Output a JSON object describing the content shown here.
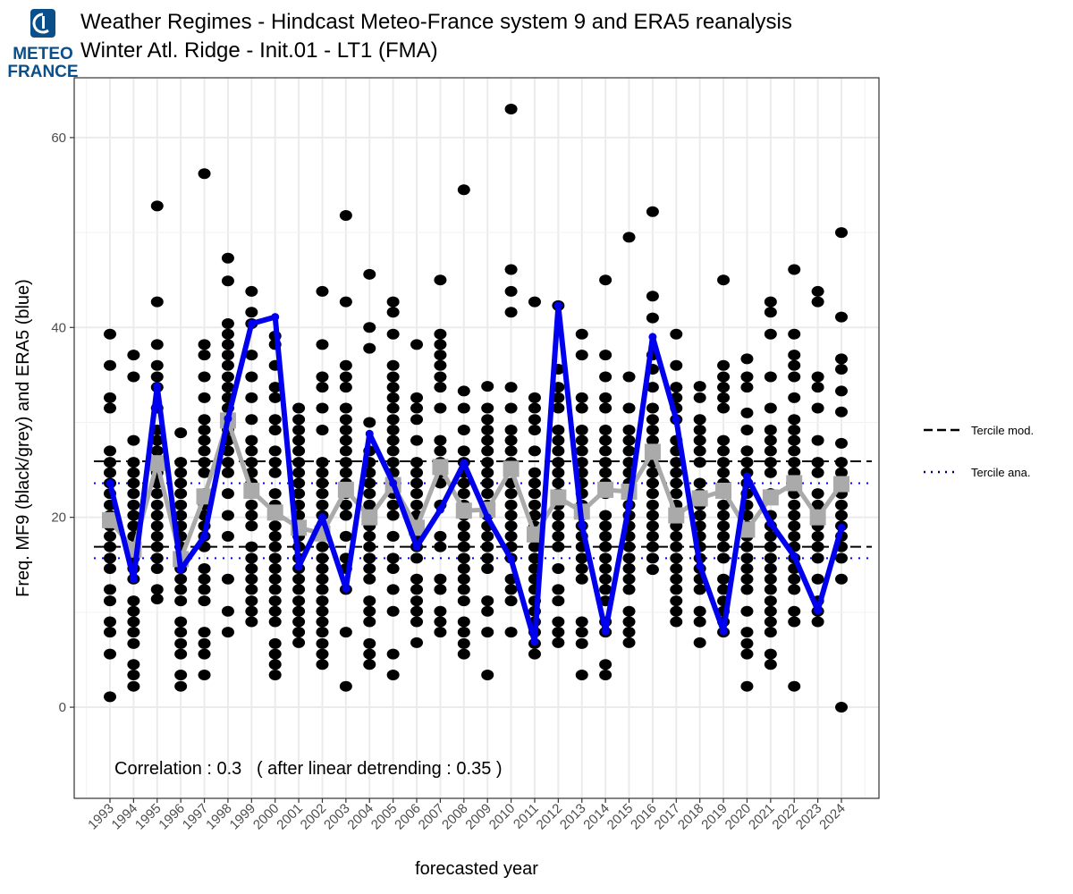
{
  "logo": {
    "line1": "METEO",
    "line2": "FRANCE",
    "color": "#0b4f8a"
  },
  "chart_data": {
    "type": "scatter+line",
    "title": "Weather Regimes - Hindcast Meteo-France system 9 and ERA5 reanalysis",
    "subtitle": "Winter Atl. Ridge - Init.01 - LT1 (FMA)",
    "xlabel": "forecasted year",
    "ylabel": "Freq. MF9 (black/grey) and ERA5 (blue)",
    "ylim": [
      -9.6,
      66.3
    ],
    "yticks": [
      0,
      20,
      40,
      60
    ],
    "grid": true,
    "years": [
      1993,
      1994,
      1995,
      1996,
      1997,
      1998,
      1999,
      2000,
      2001,
      2002,
      2003,
      2004,
      2005,
      2006,
      2007,
      2008,
      2009,
      2010,
      2011,
      2012,
      2013,
      2014,
      2015,
      2016,
      2017,
      2018,
      2019,
      2020,
      2021,
      2022,
      2023,
      2024
    ],
    "era5": [
      23.6,
      13.5,
      33.8,
      14.5,
      18.0,
      30.4,
      40.4,
      41.1,
      14.8,
      20.0,
      12.5,
      28.8,
      23.6,
      16.9,
      20.8,
      25.7,
      20.0,
      15.6,
      6.9,
      42.3,
      19.2,
      8.0,
      21.3,
      39.0,
      30.3,
      14.9,
      8.0,
      24.3,
      19.4,
      15.9,
      10.2,
      18.9
    ],
    "model_mean": [
      19.7,
      16.6,
      25.7,
      15.6,
      22.2,
      30.2,
      22.8,
      20.5,
      18.9,
      18.3,
      22.9,
      20.0,
      23.4,
      18.9,
      25.3,
      20.7,
      20.8,
      25.1,
      18.2,
      22.1,
      20.6,
      22.9,
      22.7,
      26.9,
      20.2,
      22.0,
      22.8,
      18.7,
      22.1,
      23.6,
      20.0,
      23.5
    ],
    "members": [
      [
        1.1,
        5.6,
        7.9,
        9.0,
        11.2,
        12.4,
        14.6,
        15.7,
        16.9,
        18.0,
        19.1,
        20.2,
        21.3,
        22.5,
        23.6,
        24.7,
        25.8,
        27.0,
        31.5,
        32.6,
        36.0,
        39.3
      ],
      [
        2.2,
        3.4,
        4.5,
        6.7,
        7.9,
        9.0,
        10.1,
        11.2,
        13.5,
        14.6,
        15.7,
        16.9,
        18.0,
        19.1,
        20.2,
        21.3,
        22.5,
        23.6,
        24.7,
        25.8,
        28.1,
        34.8,
        37.1
      ],
      [
        11.4,
        12.4,
        14.6,
        15.7,
        16.9,
        18.0,
        19.1,
        20.2,
        21.3,
        22.5,
        23.6,
        24.7,
        25.8,
        27.0,
        28.1,
        29.2,
        31.5,
        33.7,
        34.8,
        36.0,
        38.2,
        42.7,
        52.8
      ],
      [
        2.2,
        3.4,
        5.6,
        6.7,
        7.9,
        9.0,
        11.2,
        12.4,
        13.5,
        14.6,
        15.7,
        16.9,
        18.0,
        19.1,
        20.2,
        21.3,
        22.5,
        23.6,
        24.7,
        25.8,
        28.9
      ],
      [
        3.4,
        5.6,
        6.7,
        7.9,
        11.2,
        12.4,
        13.5,
        14.6,
        16.9,
        18.0,
        19.1,
        20.2,
        21.3,
        22.5,
        24.7,
        25.8,
        27.0,
        28.1,
        29.2,
        30.3,
        32.6,
        34.8,
        37.1,
        38.2,
        56.2
      ],
      [
        7.9,
        10.1,
        13.5,
        18.0,
        20.2,
        22.5,
        24.7,
        25.8,
        27.0,
        28.1,
        29.2,
        30.3,
        31.5,
        32.6,
        33.7,
        34.8,
        36.0,
        37.1,
        38.2,
        39.3,
        40.4,
        44.9,
        47.3
      ],
      [
        9.0,
        10.1,
        11.2,
        12.4,
        13.5,
        14.6,
        15.7,
        16.9,
        19.1,
        20.2,
        21.3,
        22.5,
        23.6,
        24.7,
        25.8,
        27.0,
        28.1,
        30.3,
        32.6,
        34.8,
        37.1,
        40.4,
        41.6,
        43.8
      ],
      [
        3.4,
        4.5,
        5.6,
        6.7,
        9.0,
        10.1,
        11.2,
        12.4,
        13.5,
        14.6,
        15.7,
        16.9,
        18.0,
        19.1,
        20.2,
        21.3,
        22.5,
        24.7,
        25.8,
        27.0,
        29.2,
        30.3,
        32.6,
        33.7,
        36.0,
        38.2,
        39.1
      ],
      [
        6.8,
        7.9,
        9.0,
        10.1,
        11.2,
        12.4,
        13.5,
        14.6,
        15.7,
        16.9,
        18.0,
        19.1,
        20.2,
        21.3,
        22.5,
        23.6,
        24.7,
        25.8,
        27.0,
        28.1,
        29.2,
        30.3,
        31.5
      ],
      [
        4.5,
        5.6,
        6.7,
        7.9,
        9.0,
        10.1,
        11.2,
        12.4,
        13.5,
        14.6,
        15.7,
        16.9,
        18.0,
        19.1,
        20.2,
        21.3,
        22.5,
        23.6,
        24.7,
        25.8,
        29.2,
        31.5,
        33.7,
        34.8,
        38.2,
        43.8
      ],
      [
        2.2,
        7.9,
        12.4,
        14.6,
        15.7,
        18.0,
        20.2,
        21.3,
        22.5,
        23.6,
        24.7,
        25.8,
        27.0,
        28.1,
        29.2,
        30.3,
        31.5,
        33.7,
        34.8,
        36.0,
        42.7,
        51.8
      ],
      [
        4.5,
        5.6,
        6.7,
        9.0,
        10.1,
        11.2,
        13.5,
        14.6,
        15.7,
        16.9,
        18.0,
        19.1,
        20.2,
        21.3,
        22.5,
        23.6,
        24.7,
        25.8,
        27.0,
        30.0,
        37.8,
        40.0,
        45.6
      ],
      [
        3.4,
        5.6,
        10.1,
        12.4,
        14.6,
        15.7,
        18.0,
        20.2,
        21.3,
        22.5,
        23.6,
        24.7,
        25.8,
        27.0,
        28.1,
        29.2,
        30.3,
        31.5,
        32.6,
        33.7,
        34.8,
        36.0,
        39.3,
        41.6,
        42.7
      ],
      [
        6.8,
        9.0,
        10.1,
        11.2,
        12.4,
        13.5,
        15.7,
        16.9,
        18.0,
        19.1,
        20.2,
        21.3,
        22.5,
        23.6,
        24.7,
        25.8,
        28.1,
        30.3,
        31.5,
        32.6,
        38.2
      ],
      [
        7.9,
        9.0,
        10.1,
        12.4,
        13.5,
        16.9,
        18.0,
        21.3,
        23.6,
        24.7,
        25.8,
        27.0,
        28.1,
        31.5,
        33.7,
        34.8,
        36.0,
        37.1,
        38.2,
        39.3,
        45.0
      ],
      [
        5.6,
        6.7,
        7.9,
        9.0,
        11.2,
        12.4,
        13.5,
        14.6,
        15.7,
        16.9,
        18.0,
        19.1,
        20.2,
        21.3,
        22.5,
        23.6,
        24.7,
        25.8,
        27.0,
        29.2,
        31.5,
        33.3,
        54.5
      ],
      [
        3.4,
        7.9,
        10.1,
        11.2,
        14.6,
        15.7,
        16.9,
        18.0,
        19.1,
        20.2,
        21.3,
        22.5,
        23.6,
        24.7,
        25.8,
        27.0,
        28.1,
        29.2,
        30.3,
        31.5,
        33.8
      ],
      [
        7.9,
        11.2,
        12.4,
        13.5,
        15.7,
        16.9,
        18.0,
        19.1,
        20.2,
        21.3,
        22.5,
        23.6,
        25.8,
        27.0,
        28.1,
        29.2,
        31.5,
        33.7,
        41.6,
        43.8,
        46.1,
        63.0
      ],
      [
        5.6,
        6.7,
        7.9,
        9.0,
        10.1,
        11.2,
        12.4,
        13.5,
        14.6,
        15.7,
        16.9,
        18.0,
        19.1,
        20.2,
        21.3,
        22.5,
        23.6,
        24.7,
        27.0,
        29.2,
        30.3,
        31.5,
        32.6,
        42.7
      ],
      [
        6.8,
        7.9,
        9.0,
        11.2,
        12.4,
        14.6,
        16.9,
        18.0,
        19.1,
        20.2,
        21.3,
        22.5,
        23.6,
        24.7,
        25.8,
        27.0,
        28.1,
        29.2,
        31.5,
        32.6,
        33.7,
        35.6,
        42.3
      ],
      [
        3.4,
        6.7,
        7.9,
        9.0,
        13.5,
        14.6,
        15.7,
        16.9,
        18.0,
        19.1,
        20.2,
        21.3,
        22.5,
        23.6,
        24.7,
        25.8,
        27.0,
        28.1,
        29.2,
        31.5,
        32.6,
        37.1,
        39.3
      ],
      [
        3.4,
        4.5,
        7.9,
        9.0,
        11.2,
        12.4,
        13.5,
        14.6,
        15.7,
        16.9,
        18.0,
        19.1,
        20.2,
        22.5,
        23.6,
        24.7,
        25.8,
        27.0,
        28.1,
        29.2,
        31.5,
        32.6,
        34.8,
        37.1,
        45.0
      ],
      [
        6.8,
        7.9,
        9.0,
        10.1,
        12.4,
        13.5,
        14.6,
        15.7,
        16.9,
        18.0,
        19.1,
        20.2,
        21.3,
        22.5,
        23.6,
        24.7,
        25.8,
        27.0,
        28.1,
        29.2,
        31.5,
        34.8,
        49.5
      ],
      [
        14.5,
        15.7,
        16.9,
        18.0,
        19.1,
        20.2,
        21.3,
        22.5,
        23.6,
        24.7,
        25.8,
        27.0,
        28.1,
        29.2,
        30.3,
        31.5,
        33.7,
        35.6,
        37.1,
        41.0,
        43.3,
        52.2
      ],
      [
        9.0,
        10.1,
        11.2,
        12.4,
        13.5,
        14.6,
        15.7,
        16.9,
        18.0,
        19.1,
        20.2,
        21.3,
        22.5,
        23.6,
        24.7,
        25.8,
        27.0,
        28.1,
        30.3,
        31.5,
        32.6,
        33.7,
        36.0,
        39.3
      ],
      [
        6.8,
        9.0,
        10.1,
        12.4,
        13.5,
        14.6,
        15.7,
        16.9,
        18.0,
        19.1,
        20.2,
        21.3,
        22.5,
        23.6,
        25.8,
        27.0,
        28.1,
        29.2,
        30.3,
        32.6,
        33.8
      ],
      [
        7.9,
        9.0,
        10.1,
        11.2,
        12.4,
        13.5,
        15.7,
        16.9,
        18.0,
        19.1,
        20.2,
        21.3,
        22.5,
        23.6,
        24.7,
        25.8,
        27.0,
        28.1,
        31.5,
        32.6,
        33.7,
        34.8,
        36.0,
        45.0
      ],
      [
        2.2,
        5.6,
        6.7,
        7.9,
        10.1,
        12.4,
        13.5,
        14.6,
        15.7,
        16.9,
        18.0,
        19.1,
        20.2,
        21.3,
        22.5,
        23.6,
        24.7,
        25.8,
        27.0,
        29.2,
        31.0,
        33.7,
        34.8,
        36.7
      ],
      [
        4.5,
        5.6,
        7.9,
        9.0,
        10.1,
        11.2,
        12.4,
        13.5,
        14.6,
        15.7,
        16.9,
        18.0,
        19.1,
        20.2,
        22.5,
        24.7,
        25.8,
        27.0,
        28.1,
        29.2,
        31.5,
        34.8,
        39.3,
        41.6,
        42.7
      ],
      [
        2.2,
        9.0,
        10.1,
        12.4,
        13.5,
        14.6,
        15.7,
        16.9,
        18.0,
        19.1,
        20.2,
        21.3,
        22.5,
        23.6,
        24.7,
        25.8,
        27.0,
        28.1,
        29.2,
        30.3,
        32.6,
        34.8,
        36.0,
        37.1,
        39.3,
        46.1
      ],
      [
        9.0,
        10.1,
        11.2,
        13.5,
        15.7,
        16.9,
        18.0,
        19.1,
        20.2,
        21.3,
        22.5,
        24.7,
        25.8,
        28.1,
        31.5,
        33.7,
        34.8,
        42.7,
        43.8
      ],
      [
        0.0,
        13.5,
        15.7,
        16.9,
        18.0,
        19.1,
        20.2,
        21.3,
        22.5,
        23.6,
        24.7,
        25.8,
        27.8,
        31.1,
        33.3,
        35.6,
        36.7,
        41.1,
        50.0
      ]
    ],
    "tercile_model": [
      16.9,
      25.9
    ],
    "tercile_analysis": [
      15.7,
      23.6
    ],
    "legend": [
      {
        "label": "Tercile mod.",
        "style": "dashed",
        "color": "#000000"
      },
      {
        "label": "Tercile ana.",
        "style": "dotted",
        "color": "#000080"
      }
    ],
    "legend_placement": "right",
    "annotation": "Correlation : 0.3   ( after linear detrending : 0.35 )",
    "colors": {
      "members": "#000000",
      "model_mean": "#aaaaaa",
      "era5": "#0000ee",
      "tercile_ana": "#0000ff"
    }
  }
}
